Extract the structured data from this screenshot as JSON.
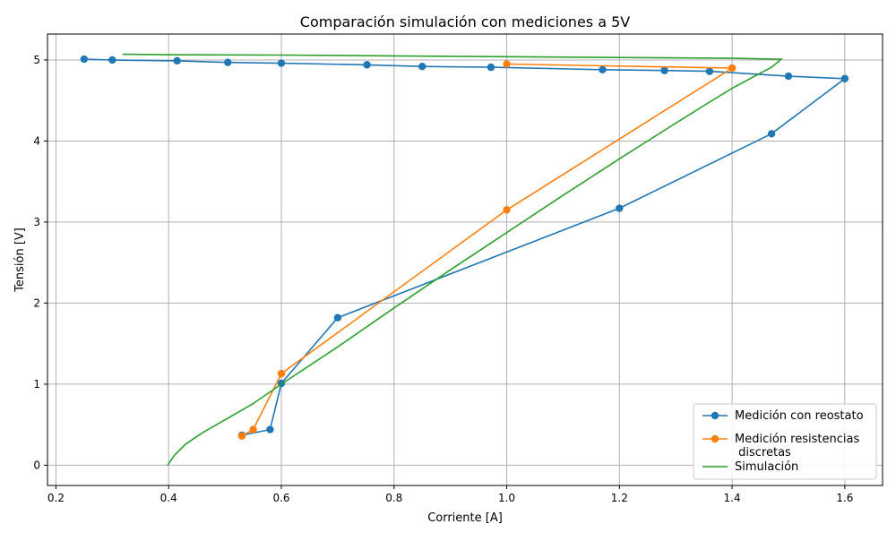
{
  "chart_data": {
    "type": "line",
    "title": "Comparación simulación con mediciones a 5V",
    "xlabel": "Corriente [A]",
    "ylabel": "Tensión [V]",
    "xlim": [
      0.185,
      1.667
    ],
    "ylim": [
      -0.25,
      5.32
    ],
    "xticks": [
      0.2,
      0.4,
      0.6,
      0.8,
      1.0,
      1.2,
      1.4,
      1.6
    ],
    "xtick_labels": [
      "0.2",
      "0.4",
      "0.6",
      "0.8",
      "1.0",
      "1.2",
      "1.4",
      "1.6"
    ],
    "yticks": [
      0,
      1,
      2,
      3,
      4,
      5
    ],
    "ytick_labels": [
      "0",
      "1",
      "2",
      "3",
      "4",
      "5"
    ],
    "grid": true,
    "legend_position": "bottom-right",
    "series": [
      {
        "name": "Medición con reostato",
        "color": "#1f77b4",
        "markers": true,
        "x": [
          0.25,
          0.3,
          0.415,
          0.505,
          0.6,
          0.752,
          0.85,
          0.972,
          1.17,
          1.28,
          1.36,
          1.5,
          1.6,
          1.47,
          1.2,
          0.7,
          0.6,
          0.58,
          0.53
        ],
        "y": [
          5.01,
          5.0,
          4.99,
          4.97,
          4.96,
          4.94,
          4.92,
          4.91,
          4.88,
          4.87,
          4.86,
          4.8,
          4.77,
          4.09,
          3.17,
          1.82,
          1.01,
          0.44,
          0.37
        ]
      },
      {
        "name": "Medición resistencias\n discretas",
        "color": "#ff7f0e",
        "markers": true,
        "x": [
          1.0,
          1.4,
          1.0,
          0.6,
          0.55,
          0.53
        ],
        "y": [
          4.95,
          4.9,
          3.15,
          1.13,
          0.44,
          0.36
        ]
      },
      {
        "name": "Simulación",
        "color": "#2ca02c",
        "markers": false,
        "x": [
          0.398,
          0.41,
          0.43,
          0.46,
          0.5,
          0.55,
          0.6,
          0.7,
          0.8,
          0.9,
          1.0,
          1.1,
          1.2,
          1.3,
          1.36,
          1.4,
          1.44,
          1.47,
          1.487,
          1.4,
          1.2,
          1.0,
          0.8,
          0.6,
          0.4,
          0.318
        ],
        "y": [
          0.0,
          0.12,
          0.26,
          0.4,
          0.56,
          0.76,
          1.0,
          1.46,
          1.94,
          2.41,
          2.87,
          3.33,
          3.78,
          4.22,
          4.48,
          4.65,
          4.8,
          4.91,
          5.01,
          5.02,
          5.03,
          5.04,
          5.05,
          5.06,
          5.065,
          5.07
        ]
      }
    ]
  }
}
